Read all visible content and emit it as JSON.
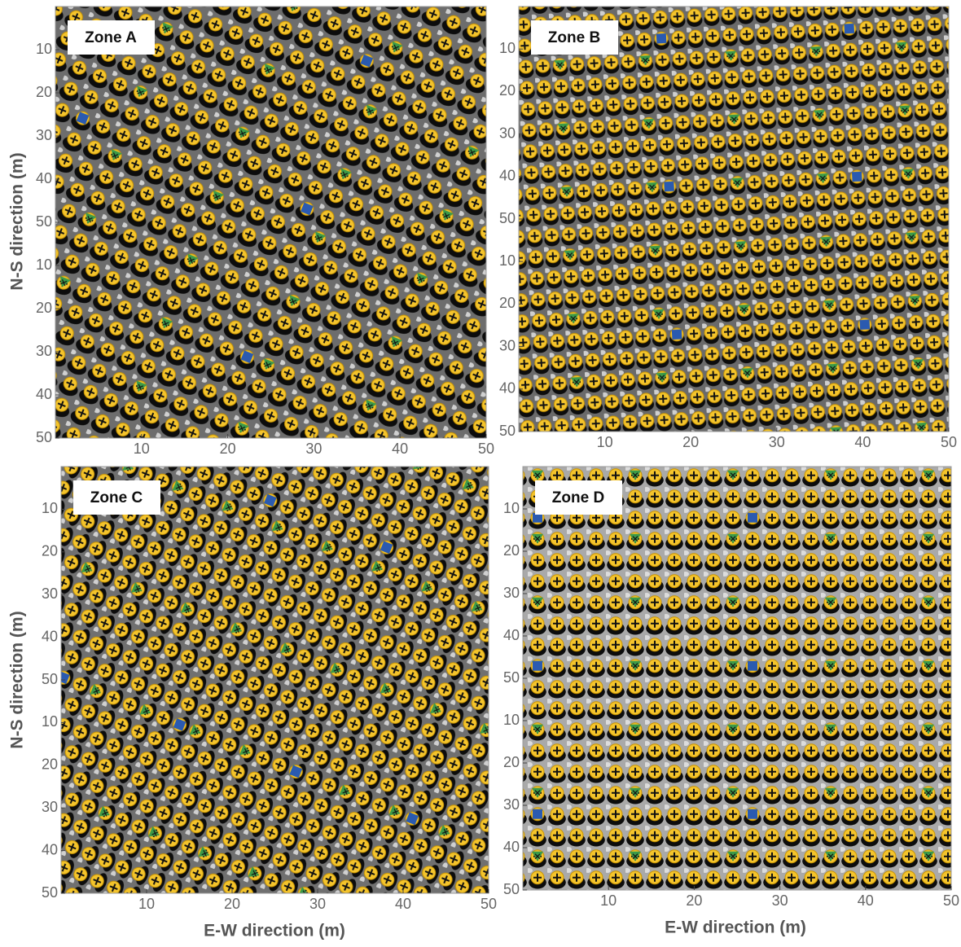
{
  "chart_data": [
    {
      "type": "scatter",
      "title": "Zone A",
      "ylabel": "N-S direction (m)",
      "xlim": [
        0,
        50
      ],
      "xticks": [
        10,
        20,
        30,
        40,
        50
      ],
      "ylim": [
        0,
        100
      ],
      "yticks": [
        10,
        20,
        30,
        40,
        50,
        {
          "value": 60,
          "label": "10"
        },
        {
          "value": 70,
          "label": "20"
        },
        {
          "value": 80,
          "label": "30"
        },
        {
          "value": 90,
          "label": "40"
        },
        {
          "value": 100,
          "label": "50"
        }
      ]
    },
    {
      "type": "scatter",
      "title": "Zone B",
      "xlim": [
        0,
        50
      ],
      "xticks": [
        10,
        20,
        30,
        40,
        50
      ],
      "ylim": [
        0,
        100
      ],
      "yticks": [
        10,
        20,
        30,
        40,
        50,
        {
          "value": 60,
          "label": "10"
        },
        {
          "value": 70,
          "label": "20"
        },
        {
          "value": 80,
          "label": "30"
        },
        {
          "value": 90,
          "label": "40"
        },
        {
          "value": 100,
          "label": "50"
        }
      ]
    },
    {
      "type": "scatter",
      "title": "Zone C",
      "ylabel": "N-S direction (m)",
      "xlabel": "E-W direction (m)",
      "xlim": [
        0,
        50
      ],
      "xticks": [
        10,
        20,
        30,
        40,
        50
      ],
      "ylim": [
        0,
        100
      ],
      "yticks": [
        10,
        20,
        30,
        40,
        50,
        {
          "value": 60,
          "label": "10"
        },
        {
          "value": 70,
          "label": "20"
        },
        {
          "value": 80,
          "label": "30"
        },
        {
          "value": 90,
          "label": "40"
        },
        {
          "value": 100,
          "label": "50"
        }
      ]
    },
    {
      "type": "scatter",
      "title": "Zone D",
      "xlabel": "E-W direction (m)",
      "xlim": [
        0,
        50
      ],
      "xticks": [
        10,
        20,
        30,
        40,
        50
      ],
      "ylim": [
        0,
        100
      ],
      "yticks": [
        10,
        20,
        30,
        40,
        50,
        {
          "value": 60,
          "label": "10"
        },
        {
          "value": 70,
          "label": "20"
        },
        {
          "value": 80,
          "label": "30"
        },
        {
          "value": 90,
          "label": "40"
        },
        {
          "value": 100,
          "label": "50"
        }
      ]
    }
  ]
}
